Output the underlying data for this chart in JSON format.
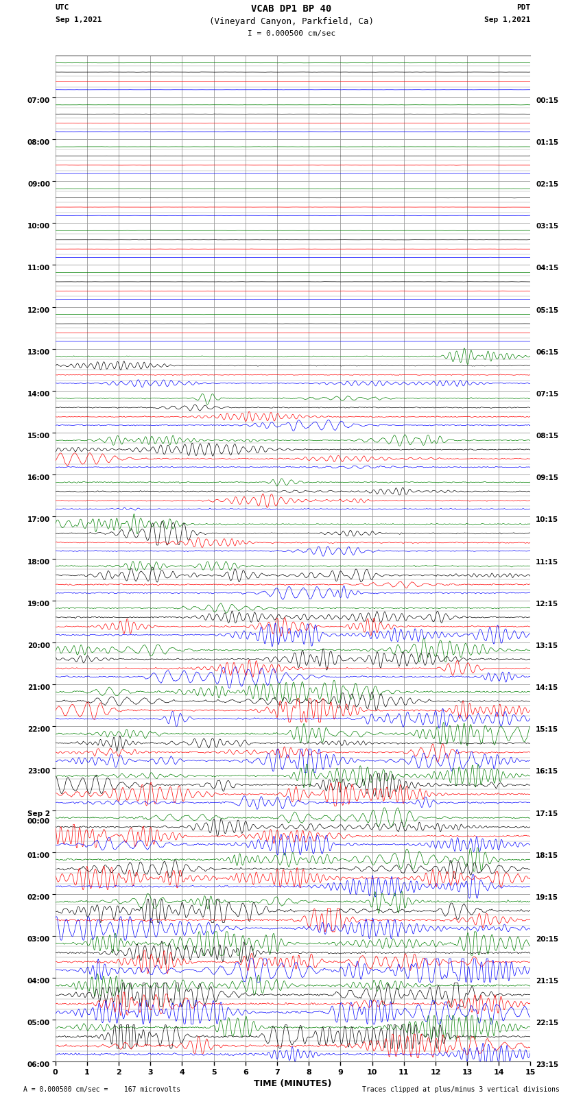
{
  "title_line1": "VCAB DP1 BP 40",
  "title_line2": "(Vineyard Canyon, Parkfield, Ca)",
  "title_line3": "I = 0.000500 cm/sec",
  "utc_label": "UTC",
  "utc_date": "Sep 1,2021",
  "pdt_label": "PDT",
  "pdt_date": "Sep 1,2021",
  "bottom_left": "A = 0.000500 cm/sec =    167 microvolts",
  "bottom_right": "Traces clipped at plus/minus 3 vertical divisions",
  "xlabel": "TIME (MINUTES)",
  "left_times_utc": [
    "07:00",
    "08:00",
    "09:00",
    "10:00",
    "11:00",
    "12:00",
    "13:00",
    "14:00",
    "15:00",
    "16:00",
    "17:00",
    "18:00",
    "19:00",
    "20:00",
    "21:00",
    "22:00",
    "23:00",
    "Sep 2\n00:00",
    "01:00",
    "02:00",
    "03:00",
    "04:00",
    "05:00",
    "06:00"
  ],
  "right_times_pdt": [
    "00:15",
    "01:15",
    "02:15",
    "03:15",
    "04:15",
    "05:15",
    "06:15",
    "07:15",
    "08:15",
    "09:15",
    "10:15",
    "11:15",
    "12:15",
    "13:15",
    "14:15",
    "15:15",
    "16:15",
    "17:15",
    "18:15",
    "19:15",
    "20:15",
    "21:15",
    "22:15",
    "23:15"
  ],
  "n_rows": 24,
  "colors": [
    "green",
    "black",
    "red",
    "blue"
  ],
  "bg_color": "#ffffff",
  "grid_color": "#999999",
  "minutes_ticks": [
    0,
    1,
    2,
    3,
    4,
    5,
    6,
    7,
    8,
    9,
    10,
    11,
    12,
    13,
    14,
    15
  ],
  "xmin": 0,
  "xmax": 15,
  "quiet_rows": 7,
  "seed": 12345
}
